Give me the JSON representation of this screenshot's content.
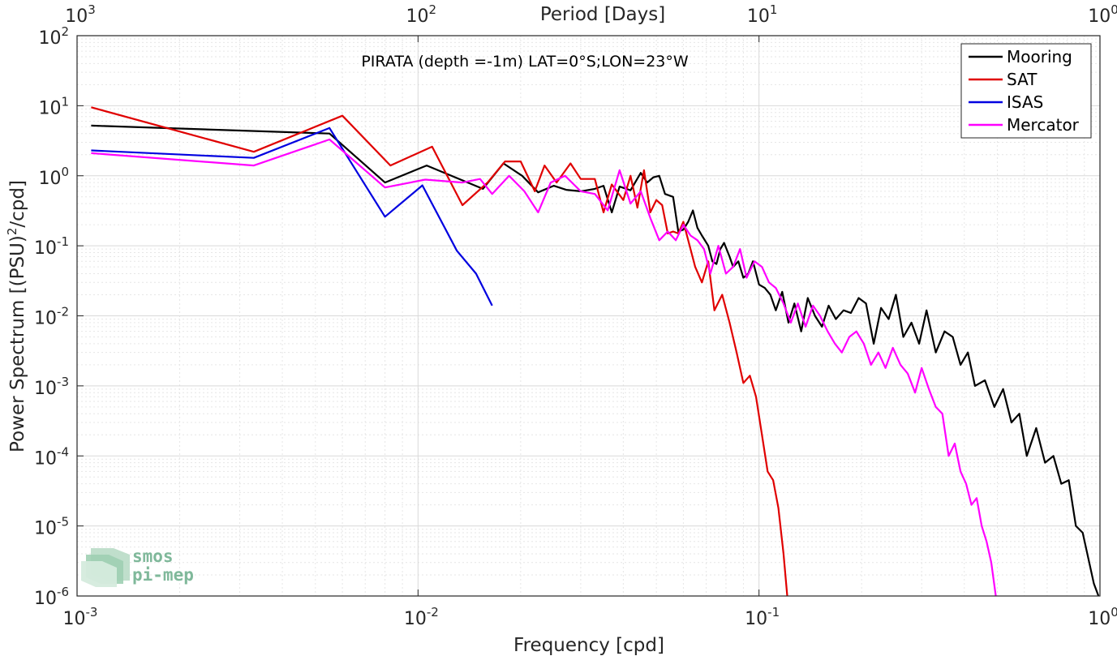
{
  "chart_data": {
    "type": "line",
    "title": "PIRATA (depth =-1m) LAT=0°S;LON=23°W",
    "xlabel": "Frequency [cpd]",
    "ylabel": "Power Spectrum [(PSU)²/cpd]",
    "ylabel_parts": {
      "main": "Power Spectrum [(PSU)",
      "sup": "2",
      "tail": "/cpd]"
    },
    "top_xlabel": "Period [Days]",
    "xscale": "log",
    "yscale": "log",
    "xlim": [
      0.001,
      1
    ],
    "ylim": [
      1e-06,
      100
    ],
    "grid": true,
    "legend_position": "top-right",
    "x_ticks": [
      {
        "base": "10",
        "exp": "-3",
        "value": 0.001
      },
      {
        "base": "10",
        "exp": "-2",
        "value": 0.01
      },
      {
        "base": "10",
        "exp": "-1",
        "value": 0.1
      },
      {
        "base": "10",
        "exp": "0",
        "value": 1
      }
    ],
    "top_ticks": [
      {
        "base": "10",
        "exp": "3",
        "value": 0.001
      },
      {
        "base": "10",
        "exp": "2",
        "value": 0.01
      },
      {
        "base": "10",
        "exp": "1",
        "value": 0.1
      },
      {
        "base": "10",
        "exp": "0",
        "value": 1
      }
    ],
    "y_ticks": [
      {
        "base": "10",
        "exp": "2",
        "value": 100
      },
      {
        "base": "10",
        "exp": "1",
        "value": 10
      },
      {
        "base": "10",
        "exp": "0",
        "value": 1
      },
      {
        "base": "10",
        "exp": "-1",
        "value": 0.1
      },
      {
        "base": "10",
        "exp": "-2",
        "value": 0.01
      },
      {
        "base": "10",
        "exp": "-3",
        "value": 0.001
      },
      {
        "base": "10",
        "exp": "-4",
        "value": 0.0001
      },
      {
        "base": "10",
        "exp": "-5",
        "value": 1e-05
      },
      {
        "base": "10",
        "exp": "-6",
        "value": 1e-06
      }
    ],
    "series": [
      {
        "name": "Mooring",
        "color": "#000000",
        "x": [
          0.0011,
          0.0055,
          0.008,
          0.0106,
          0.0155,
          0.0178,
          0.0202,
          0.0225,
          0.025,
          0.0272,
          0.03,
          0.033,
          0.035,
          0.037,
          0.039,
          0.042,
          0.045,
          0.047,
          0.049,
          0.051,
          0.053,
          0.056,
          0.058,
          0.06,
          0.062,
          0.064,
          0.066,
          0.068,
          0.071,
          0.073,
          0.075,
          0.077,
          0.079,
          0.082,
          0.084,
          0.087,
          0.09,
          0.093,
          0.096,
          0.1,
          0.104,
          0.108,
          0.112,
          0.117,
          0.122,
          0.127,
          0.133,
          0.139,
          0.146,
          0.153,
          0.16,
          0.168,
          0.177,
          0.186,
          0.196,
          0.206,
          0.217,
          0.228,
          0.24,
          0.252,
          0.265,
          0.28,
          0.295,
          0.31,
          0.33,
          0.35,
          0.37,
          0.39,
          0.41,
          0.43,
          0.46,
          0.49,
          0.52,
          0.55,
          0.58,
          0.61,
          0.65,
          0.69,
          0.73,
          0.77,
          0.81,
          0.85,
          0.89,
          0.93,
          0.96,
          0.99
        ],
        "y": [
          5.2,
          4.0,
          0.8,
          1.4,
          0.65,
          1.5,
          1.0,
          0.58,
          0.72,
          0.63,
          0.6,
          0.65,
          0.72,
          0.3,
          0.7,
          0.62,
          1.1,
          0.8,
          0.95,
          1.0,
          0.55,
          0.5,
          0.16,
          0.17,
          0.22,
          0.32,
          0.18,
          0.14,
          0.1,
          0.06,
          0.055,
          0.09,
          0.11,
          0.07,
          0.05,
          0.06,
          0.035,
          0.04,
          0.06,
          0.028,
          0.025,
          0.02,
          0.012,
          0.022,
          0.008,
          0.015,
          0.006,
          0.018,
          0.01,
          0.007,
          0.014,
          0.009,
          0.012,
          0.011,
          0.018,
          0.015,
          0.004,
          0.013,
          0.009,
          0.02,
          0.005,
          0.008,
          0.004,
          0.012,
          0.003,
          0.006,
          0.005,
          0.002,
          0.003,
          0.001,
          0.0012,
          0.0005,
          0.0009,
          0.0003,
          0.0004,
          0.0001,
          0.00025,
          8e-05,
          0.0001,
          4e-05,
          4.5e-05,
          1e-05,
          8e-06,
          3e-06,
          1.5e-06,
          1e-06
        ]
      },
      {
        "name": "SAT",
        "color": "#e00000",
        "x": [
          0.0011,
          0.0033,
          0.006,
          0.0083,
          0.011,
          0.0135,
          0.016,
          0.018,
          0.02,
          0.022,
          0.0235,
          0.0255,
          0.028,
          0.03,
          0.033,
          0.035,
          0.037,
          0.04,
          0.042,
          0.044,
          0.046,
          0.048,
          0.05,
          0.052,
          0.054,
          0.056,
          0.058,
          0.06,
          0.062,
          0.065,
          0.068,
          0.071,
          0.074,
          0.078,
          0.082,
          0.086,
          0.09,
          0.094,
          0.098,
          0.102,
          0.106,
          0.11,
          0.114,
          0.118,
          0.121
        ],
        "y": [
          9.5,
          2.2,
          7.2,
          1.4,
          2.6,
          0.38,
          0.8,
          1.6,
          1.6,
          0.6,
          1.4,
          0.8,
          1.5,
          0.9,
          0.9,
          0.3,
          0.75,
          0.45,
          1.0,
          0.35,
          1.2,
          0.3,
          0.45,
          0.38,
          0.15,
          0.16,
          0.15,
          0.22,
          0.12,
          0.05,
          0.03,
          0.06,
          0.012,
          0.02,
          0.008,
          0.003,
          0.0011,
          0.0014,
          0.0007,
          0.0002,
          6e-05,
          4.5e-05,
          1.8e-05,
          4e-06,
          1e-06
        ]
      },
      {
        "name": "ISAS",
        "color": "#0000e0",
        "x": [
          0.0011,
          0.0033,
          0.0055,
          0.008,
          0.0103,
          0.013,
          0.0148,
          0.0165
        ],
        "y": [
          2.3,
          1.8,
          4.8,
          0.26,
          0.73,
          0.085,
          0.04,
          0.014
        ]
      },
      {
        "name": "Mercator",
        "color": "#ff00ff",
        "x": [
          0.0011,
          0.0033,
          0.0055,
          0.008,
          0.0105,
          0.0135,
          0.0152,
          0.0165,
          0.0185,
          0.0205,
          0.0225,
          0.0245,
          0.027,
          0.03,
          0.033,
          0.036,
          0.039,
          0.042,
          0.045,
          0.048,
          0.051,
          0.054,
          0.057,
          0.06,
          0.063,
          0.066,
          0.069,
          0.072,
          0.076,
          0.08,
          0.084,
          0.088,
          0.092,
          0.097,
          0.102,
          0.107,
          0.112,
          0.118,
          0.124,
          0.13,
          0.137,
          0.144,
          0.151,
          0.159,
          0.167,
          0.175,
          0.184,
          0.193,
          0.203,
          0.213,
          0.224,
          0.235,
          0.247,
          0.26,
          0.273,
          0.287,
          0.3,
          0.315,
          0.33,
          0.345,
          0.36,
          0.375,
          0.39,
          0.405,
          0.42,
          0.435,
          0.45,
          0.465,
          0.48,
          0.495
        ],
        "y": [
          2.1,
          1.4,
          3.3,
          0.68,
          0.88,
          0.8,
          0.9,
          0.55,
          1.0,
          0.6,
          0.3,
          0.8,
          1.0,
          0.6,
          0.55,
          0.32,
          1.2,
          0.4,
          0.6,
          0.25,
          0.12,
          0.16,
          0.12,
          0.2,
          0.14,
          0.12,
          0.09,
          0.04,
          0.1,
          0.04,
          0.05,
          0.09,
          0.035,
          0.06,
          0.05,
          0.03,
          0.025,
          0.015,
          0.008,
          0.015,
          0.007,
          0.014,
          0.01,
          0.006,
          0.004,
          0.003,
          0.005,
          0.006,
          0.004,
          0.002,
          0.003,
          0.0018,
          0.0035,
          0.002,
          0.0015,
          0.0008,
          0.0018,
          0.0009,
          0.0005,
          0.0004,
          0.0001,
          0.00015,
          6e-05,
          4e-05,
          2e-05,
          2.5e-05,
          1e-05,
          6e-06,
          3e-06,
          1e-06
        ]
      }
    ],
    "watermark": {
      "line1": "smos",
      "line2": "pi-mep"
    }
  }
}
